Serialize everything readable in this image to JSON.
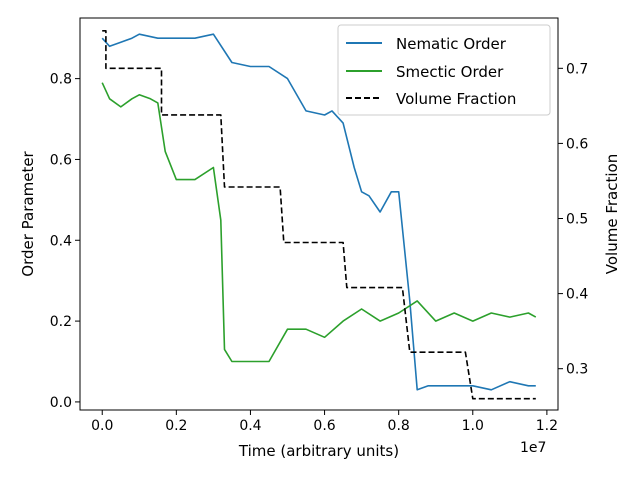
{
  "chart_data": {
    "type": "line",
    "xlabel": "Time (arbitrary units)",
    "ylabel": "Order Parameter",
    "y2label": "Volume Fraction",
    "x_offset_label": "1e7",
    "xlim": [
      -0.06,
      1.23
    ],
    "ylim": [
      -0.02,
      0.95
    ],
    "y2lim": [
      0.245,
      0.767
    ],
    "x_ticks": [
      0.0,
      0.2,
      0.4,
      0.6,
      0.8,
      1.0,
      1.2
    ],
    "x_tick_labels": [
      "0.0",
      "0.2",
      "0.4",
      "0.6",
      "0.8",
      "1.0",
      "1.2"
    ],
    "y_ticks": [
      0.0,
      0.2,
      0.4,
      0.6,
      0.8
    ],
    "y_tick_labels": [
      "0.0",
      "0.2",
      "0.4",
      "0.6",
      "0.8"
    ],
    "y2_ticks": [
      0.3,
      0.4,
      0.5,
      0.6,
      0.7
    ],
    "y2_tick_labels": [
      "0.3",
      "0.4",
      "0.5",
      "0.6",
      "0.7"
    ],
    "legend_position": "top-right",
    "grid": false,
    "series": [
      {
        "name": "Nematic Order",
        "axis": "left",
        "color": "#1f77b4",
        "style": "solid",
        "x": [
          0.0,
          0.02,
          0.05,
          0.08,
          0.1,
          0.15,
          0.2,
          0.25,
          0.3,
          0.35,
          0.4,
          0.45,
          0.5,
          0.55,
          0.6,
          0.62,
          0.65,
          0.68,
          0.7,
          0.72,
          0.75,
          0.78,
          0.8,
          0.83,
          0.85,
          0.88,
          0.9,
          0.95,
          1.0,
          1.05,
          1.1,
          1.15,
          1.17
        ],
        "y": [
          0.9,
          0.88,
          0.89,
          0.9,
          0.91,
          0.9,
          0.9,
          0.9,
          0.91,
          0.84,
          0.83,
          0.83,
          0.8,
          0.72,
          0.71,
          0.72,
          0.69,
          0.58,
          0.52,
          0.51,
          0.47,
          0.52,
          0.52,
          0.25,
          0.03,
          0.04,
          0.04,
          0.04,
          0.04,
          0.03,
          0.05,
          0.04,
          0.04
        ]
      },
      {
        "name": "Smectic Order",
        "axis": "left",
        "color": "#2ca02c",
        "style": "solid",
        "x": [
          0.0,
          0.02,
          0.05,
          0.08,
          0.1,
          0.13,
          0.15,
          0.17,
          0.2,
          0.25,
          0.3,
          0.32,
          0.33,
          0.35,
          0.4,
          0.45,
          0.5,
          0.55,
          0.6,
          0.65,
          0.7,
          0.75,
          0.8,
          0.85,
          0.9,
          0.95,
          1.0,
          1.05,
          1.1,
          1.15,
          1.17
        ],
        "y": [
          0.79,
          0.75,
          0.73,
          0.75,
          0.76,
          0.75,
          0.74,
          0.62,
          0.55,
          0.55,
          0.58,
          0.45,
          0.13,
          0.1,
          0.1,
          0.1,
          0.18,
          0.18,
          0.16,
          0.2,
          0.23,
          0.2,
          0.22,
          0.25,
          0.2,
          0.22,
          0.2,
          0.22,
          0.21,
          0.22,
          0.21
        ]
      },
      {
        "name": "Volume Fraction",
        "axis": "right",
        "color": "#000000",
        "style": "dashed",
        "x": [
          0.0,
          0.01,
          0.01,
          0.16,
          0.16,
          0.32,
          0.33,
          0.48,
          0.49,
          0.65,
          0.66,
          0.81,
          0.83,
          0.98,
          1.0,
          1.17
        ],
        "y": [
          0.75,
          0.75,
          0.7,
          0.7,
          0.638,
          0.638,
          0.542,
          0.542,
          0.468,
          0.468,
          0.408,
          0.408,
          0.322,
          0.322,
          0.26,
          0.26
        ]
      }
    ]
  }
}
